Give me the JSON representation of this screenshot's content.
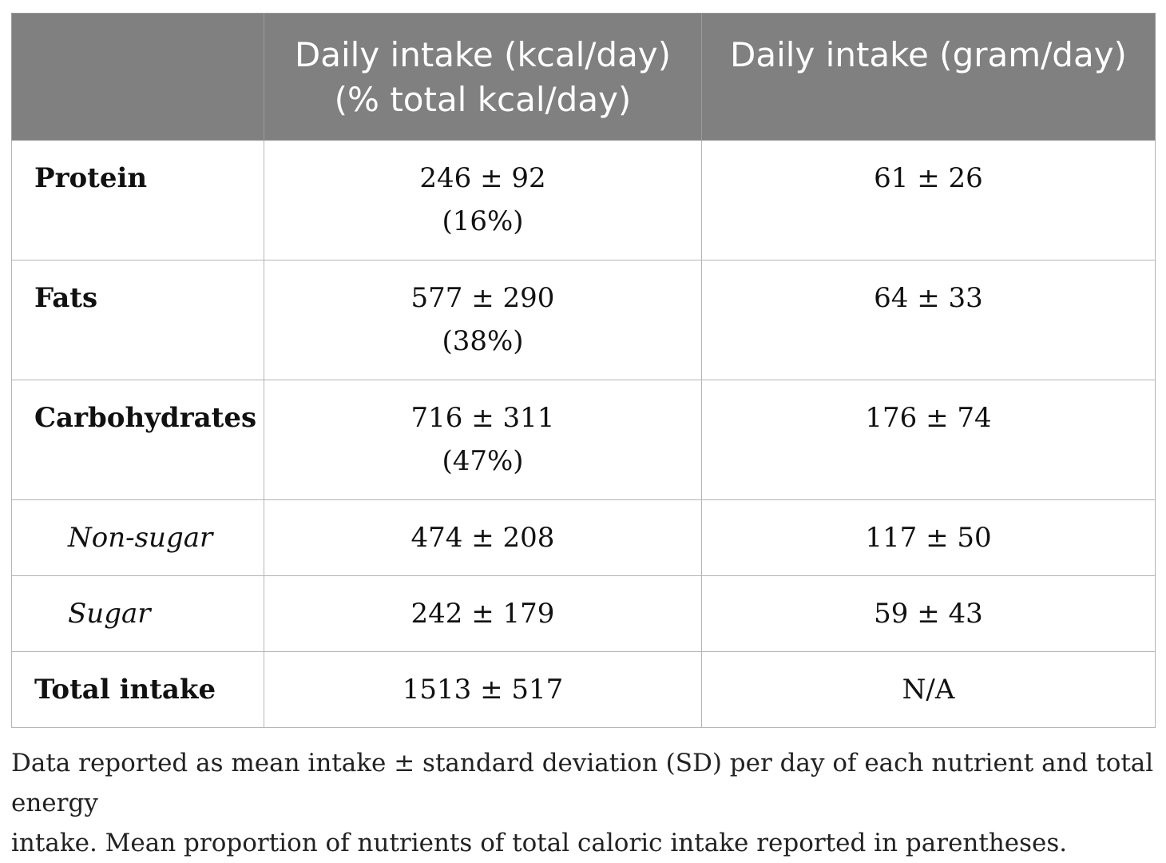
{
  "table": {
    "header": {
      "col1": "",
      "col2_line1": "Daily intake (kcal/day)",
      "col2_line2": "(% total kcal/day)",
      "col3": "Daily intake (gram/day)"
    },
    "rows": [
      {
        "label": "Protein",
        "kcal": "246 ± 92",
        "percent": "(16%)",
        "gram": "61 ± 26"
      },
      {
        "label": "Fats",
        "kcal": "577 ± 290",
        "percent": "(38%)",
        "gram": "64 ± 33"
      },
      {
        "label": "Carbohydrates",
        "kcal": "716 ± 311",
        "percent": "(47%)",
        "gram": "176 ± 74"
      },
      {
        "label": "Non-sugar",
        "kcal": "474 ± 208",
        "gram": "117 ± 50"
      },
      {
        "label": "Sugar",
        "kcal": "242 ± 179",
        "gram": "59 ± 43"
      },
      {
        "label": "Total intake",
        "kcal": "1513 ± 517",
        "gram": "N/A"
      }
    ]
  },
  "footnote": {
    "line1": "Data reported as mean intake ± standard deviation (SD) per day of each nutrient and total energy",
    "line2": "intake. Mean proportion of nutrients of total caloric intake reported in parentheses."
  },
  "colors": {
    "header_bg": "#808080",
    "header_text": "#ffffff",
    "border": "#b5b5b5"
  }
}
